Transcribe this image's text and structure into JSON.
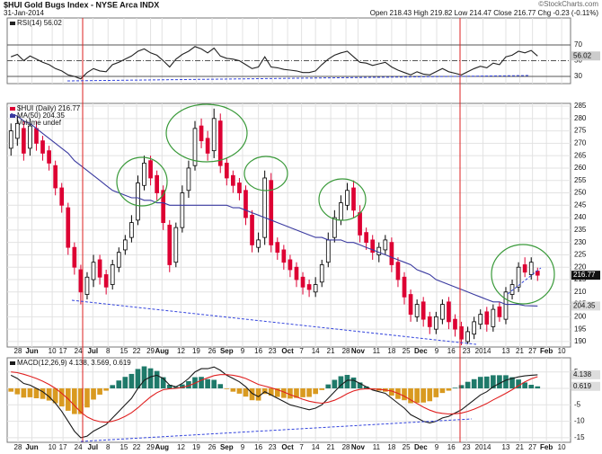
{
  "header": {
    "title": "$HUI Gold Bugs Index - NYSE Arca INDX",
    "date": "31-Jan-2014",
    "quote": "Open 218.43 High 219.82 Low 214.47 Close 216.77 Chg -0.23 (-0.11%)",
    "copyright": "©StockCharts.com"
  },
  "chart_data": [
    {
      "type": "line",
      "title": "RSI(14) 56.02",
      "ylim": [
        20.9,
        104.3
      ],
      "yticks": [
        30,
        50,
        70
      ],
      "grid": true,
      "series": [
        {
          "color": "#222222",
          "values": [
            55,
            58,
            50,
            56,
            52,
            48,
            45,
            40,
            37,
            32,
            30,
            27,
            35,
            40,
            37,
            36,
            45,
            48,
            52,
            56,
            62,
            65,
            60,
            57,
            50,
            42,
            52,
            58,
            62,
            68,
            65,
            60,
            66,
            56,
            53,
            52,
            50,
            45,
            40,
            42,
            55,
            42,
            41,
            39,
            38,
            37,
            35,
            35,
            37,
            45,
            52,
            57,
            60,
            62,
            55,
            48,
            47,
            44,
            46,
            48,
            42,
            38,
            35,
            32,
            36,
            33,
            32,
            36,
            40,
            36,
            34,
            32,
            36,
            40,
            43,
            41,
            47,
            45,
            55,
            57,
            62,
            60,
            63,
            56.02
          ]
        }
      ]
    },
    {
      "type": "candlestick",
      "title": "$HUI (Daily) 216.77",
      "volume_label": "Volume undef",
      "up_color": "#000000",
      "down_color": "#dd0033",
      "ylim": [
        187.8,
        286.1
      ],
      "yticks": [
        190,
        195,
        200,
        205,
        210,
        215,
        220,
        225,
        230,
        235,
        240,
        245,
        250,
        255,
        260,
        265,
        270,
        275,
        280,
        285
      ],
      "grid": true,
      "xlim": [
        -0.6,
        88.2
      ],
      "xticks": [
        {
          "value": 1.1,
          "label": "28"
        },
        {
          "value": 3.3,
          "label": "Jun"
        },
        {
          "value": 6.5,
          "label": "10"
        },
        {
          "value": 8.2,
          "label": "17"
        },
        {
          "value": 10.6,
          "label": "24"
        },
        {
          "value": 12.9,
          "label": "Jul"
        },
        {
          "value": 15.3,
          "label": "8"
        },
        {
          "value": 17.8,
          "label": "15"
        },
        {
          "value": 19.8,
          "label": "22"
        },
        {
          "value": 22,
          "label": "29"
        },
        {
          "value": 23.8,
          "label": "Aug"
        },
        {
          "value": 26.8,
          "label": "12"
        },
        {
          "value": 29.2,
          "label": "19"
        },
        {
          "value": 31.7,
          "label": "26"
        },
        {
          "value": 34,
          "label": "Sep"
        },
        {
          "value": 36.5,
          "label": "9"
        },
        {
          "value": 39,
          "label": "16"
        },
        {
          "value": 41.2,
          "label": "23"
        },
        {
          "value": 43.6,
          "label": "Oct"
        },
        {
          "value": 45.8,
          "label": "7"
        },
        {
          "value": 48,
          "label": "14"
        },
        {
          "value": 50.4,
          "label": "21"
        },
        {
          "value": 52.8,
          "label": "28"
        },
        {
          "value": 54.7,
          "label": "Nov"
        },
        {
          "value": 57.6,
          "label": "11"
        },
        {
          "value": 60,
          "label": "18"
        },
        {
          "value": 62.3,
          "label": "25"
        },
        {
          "value": 64.6,
          "label": "Dec"
        },
        {
          "value": 67.1,
          "label": "9"
        },
        {
          "value": 69.4,
          "label": "16"
        },
        {
          "value": 71.8,
          "label": "23"
        },
        {
          "value": 74.4,
          "label": "2014"
        },
        {
          "value": 78,
          "label": "13"
        },
        {
          "value": 80.2,
          "label": "21"
        },
        {
          "value": 82.2,
          "label": "27"
        },
        {
          "value": 84.4,
          "label": "Feb"
        },
        {
          "value": 86.8,
          "label": "10"
        }
      ],
      "open": [
        268,
        272,
        276,
        268,
        276,
        271,
        267,
        261,
        252,
        244,
        228,
        219,
        209,
        215,
        223,
        217,
        213,
        220,
        227,
        232,
        239,
        253,
        263,
        257,
        251,
        237,
        222,
        236,
        251,
        261,
        277,
        272,
        267,
        279,
        262,
        257,
        254,
        251,
        241,
        228,
        232,
        255,
        230,
        227,
        223,
        220,
        216,
        213,
        210,
        214,
        222,
        232,
        239,
        245,
        252,
        242,
        234,
        231,
        225,
        227,
        230,
        222,
        216,
        209,
        200,
        206,
        200,
        195,
        199,
        206,
        199,
        196,
        190,
        193,
        197,
        202,
        196,
        204,
        199,
        209,
        212,
        221,
        217,
        218.43
      ],
      "high": [
        278,
        281,
        279,
        280,
        279,
        273,
        269,
        263,
        254,
        246,
        230,
        221,
        218,
        225,
        225,
        219,
        223,
        228,
        233,
        241,
        257,
        265,
        265,
        259,
        253,
        239,
        238,
        253,
        263,
        279,
        280,
        275,
        284,
        282,
        264,
        259,
        256,
        253,
        243,
        234,
        259,
        258,
        232,
        229,
        225,
        222,
        218,
        215,
        216,
        223,
        234,
        243,
        249,
        254,
        255,
        245,
        236,
        233,
        230,
        233,
        232,
        224,
        218,
        211,
        207,
        208,
        202,
        202,
        207,
        208,
        201,
        198,
        196,
        200,
        203,
        204,
        205,
        206,
        212,
        215,
        222,
        224,
        224,
        219.82
      ],
      "low": [
        265,
        269,
        263,
        265,
        267,
        263,
        259,
        249,
        242,
        225,
        217,
        205,
        207,
        212,
        213,
        209,
        211,
        218,
        225,
        230,
        237,
        251,
        253,
        247,
        235,
        218,
        220,
        234,
        248,
        259,
        268,
        263,
        264,
        258,
        253,
        250,
        247,
        237,
        226,
        226,
        229,
        226,
        223,
        219,
        216,
        212,
        209,
        208,
        208,
        212,
        220,
        230,
        237,
        243,
        240,
        230,
        227,
        223,
        222,
        225,
        218,
        212,
        205,
        198,
        198,
        196,
        193,
        193,
        197,
        195,
        192,
        188.5,
        189,
        191,
        195,
        194,
        194,
        198,
        197,
        207,
        210,
        216,
        215,
        214.47
      ],
      "close": [
        275,
        278,
        266,
        277,
        270,
        266,
        262,
        252,
        245,
        228,
        220,
        210,
        216,
        222,
        216,
        212,
        221,
        226,
        231,
        238,
        254,
        262,
        256,
        250,
        238,
        221,
        236,
        250,
        260,
        276,
        271,
        266,
        280,
        261,
        256,
        253,
        250,
        240,
        229,
        231,
        256,
        229,
        226,
        222,
        219,
        215,
        212,
        211,
        213,
        221,
        231,
        240,
        246,
        251,
        243,
        233,
        230,
        226,
        228,
        231,
        221,
        215,
        208,
        201,
        205,
        199,
        196,
        200,
        205,
        198,
        195,
        191,
        194,
        198,
        201,
        197,
        203,
        200,
        210,
        213,
        220,
        218,
        222,
        216.77
      ],
      "overlays": [
        {
          "name": "MA(50) 204.35",
          "color": "#3a3aa0",
          "values": [
            282,
            281,
            279,
            278,
            276,
            274,
            272,
            270,
            268,
            266,
            263,
            261,
            259,
            257,
            255,
            253,
            251,
            250,
            249,
            248,
            248,
            247,
            247,
            246,
            246,
            245,
            245,
            245,
            245,
            245,
            245,
            245,
            245,
            245,
            245,
            244,
            244,
            243,
            242,
            241,
            240,
            239,
            238,
            237,
            236,
            235,
            234,
            233,
            232,
            232,
            231,
            231,
            231,
            230,
            230,
            229,
            228,
            227,
            226,
            225,
            224,
            223,
            222,
            221,
            219,
            218,
            217,
            215,
            214,
            213,
            212,
            211,
            210,
            209,
            208,
            207,
            206,
            206,
            205,
            205,
            205,
            204.5,
            204.4,
            204.35
          ]
        }
      ]
    },
    {
      "type": "macd",
      "title": "MACD(12,26,9) 4.138, 3.569, 0.619",
      "ylim": [
        -16.4,
        9.3
      ],
      "yticks": [
        -15,
        -10,
        -5,
        0,
        5
      ],
      "grid": true,
      "series": [
        {
          "color": "#1a1a1a",
          "values": [
            4,
            3,
            1.5,
            1,
            0,
            -1,
            -2.5,
            -4.5,
            -7,
            -10,
            -13,
            -15,
            -14.5,
            -13,
            -12,
            -11,
            -9,
            -7,
            -5,
            -3,
            0,
            2.5,
            3.5,
            4,
            3,
            1,
            0.5,
            1.5,
            3,
            5,
            6,
            6,
            6.5,
            5.5,
            4,
            3,
            2,
            0.5,
            -1.5,
            -2.5,
            -1,
            -2,
            -3,
            -4,
            -5,
            -5.5,
            -6,
            -6.5,
            -6,
            -5,
            -3,
            -1,
            1,
            2.5,
            2.5,
            1.5,
            0.5,
            -0.5,
            -1,
            -1.5,
            -3,
            -4.5,
            -6,
            -8,
            -9,
            -10,
            -10.5,
            -10,
            -9,
            -8.5,
            -7.5,
            -6.5,
            -5,
            -3.5,
            -2,
            -1,
            0.5,
            1.5,
            2.5,
            3,
            3.5,
            3.8,
            4,
            4.138
          ]
        },
        {
          "color": "#e02020",
          "values": [
            5,
            4.8,
            4.3,
            3.7,
            3,
            2.2,
            1.2,
            0,
            -1.5,
            -3.2,
            -5.2,
            -7.2,
            -8.7,
            -9.6,
            -10.1,
            -10.3,
            -10,
            -9.4,
            -8.5,
            -7.4,
            -5.9,
            -4.2,
            -2.6,
            -1.3,
            -0.4,
            -0.1,
            0,
            0.3,
            0.8,
            1.6,
            2.5,
            3.2,
            3.9,
            4.2,
            4.2,
            4,
            3.6,
            3,
            2.1,
            1.2,
            0.7,
            0.2,
            -0.4,
            -1.1,
            -1.9,
            -2.6,
            -3.3,
            -3.9,
            -4.3,
            -4.5,
            -4.2,
            -3.6,
            -2.7,
            -1.6,
            -0.8,
            -0.3,
            -0.1,
            -0.2,
            -0.3,
            -0.5,
            -0.8,
            -1.5,
            -2.4,
            -3.5,
            -4.6,
            -5.7,
            -6.6,
            -7.3,
            -7.6,
            -7.8,
            -7.7,
            -7.5,
            -7,
            -6.3,
            -5.5,
            -4.6,
            -3.5,
            -2.5,
            -1.5,
            -0.4,
            0.8,
            2,
            2.9,
            3.569
          ]
        }
      ],
      "histogram": {
        "up_color": "#1f7a6a",
        "down_color": "#d99a20",
        "values": [
          -1,
          -1.8,
          -2.8,
          -2.7,
          -3,
          -3.2,
          -3.7,
          -4.5,
          -5.5,
          -6.8,
          -7.8,
          -7.8,
          -5.8,
          -3.4,
          -1.9,
          -0.7,
          1,
          2.4,
          3.5,
          4.4,
          5.9,
          6.7,
          6.1,
          5.3,
          3.4,
          1.1,
          0.5,
          1.2,
          2.2,
          3.4,
          3.5,
          2.8,
          2.6,
          1.3,
          -0.2,
          -1,
          -1.6,
          -2.5,
          -3.6,
          -3.7,
          -1.7,
          -2.2,
          -2.6,
          -2.9,
          -3.1,
          -2.9,
          -2.7,
          -2.6,
          -1.7,
          -0.5,
          1.2,
          2.6,
          3.7,
          4.1,
          3.3,
          1.8,
          0.6,
          -0.3,
          -0.7,
          -1,
          -2.2,
          -3.2,
          -3.6,
          -4.5,
          -4.4,
          -4.3,
          -3.9,
          -2.7,
          -1.4,
          -0.7,
          0.2,
          1,
          2,
          2.8,
          3.5,
          3.6,
          4,
          4,
          4,
          3.4,
          2.7,
          1.8,
          1.1,
          0.619
        ]
      }
    }
  ]
}
